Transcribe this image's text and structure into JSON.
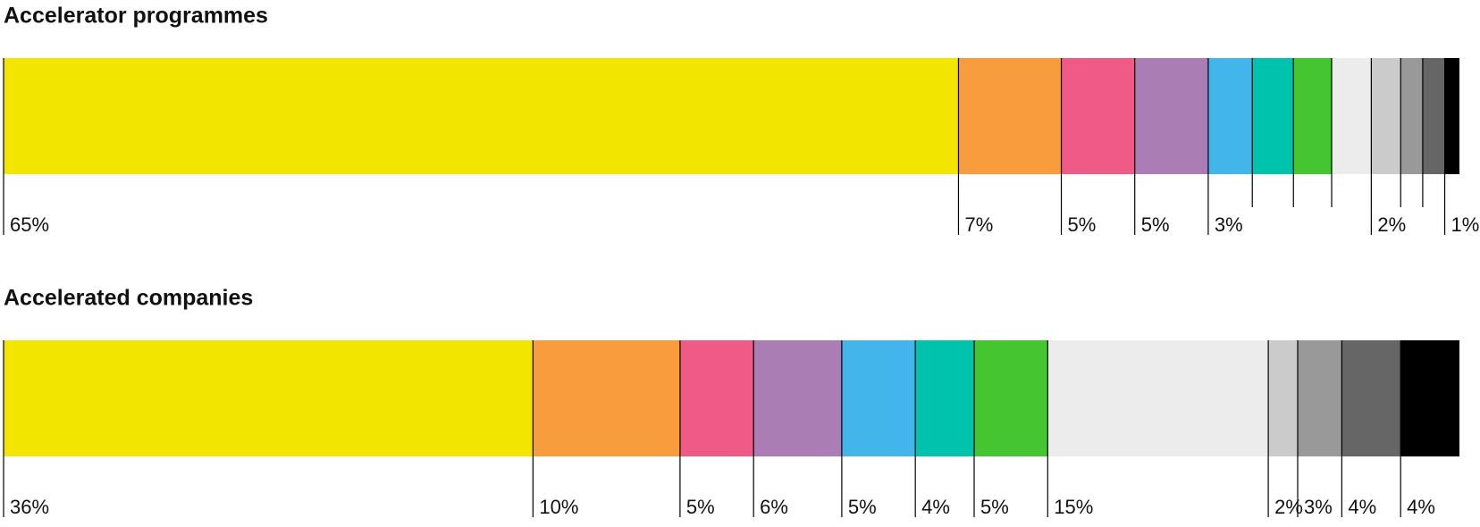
{
  "chart_data": [
    {
      "type": "stacked-bar",
      "title": "Accelerator programmes",
      "values": [
        65,
        7,
        5,
        5,
        3,
        2.8,
        2.6,
        2.7,
        2,
        1.5,
        1.5,
        1
      ],
      "value_labels": [
        "65%",
        "7%",
        "5%",
        "5%",
        "3%",
        null,
        null,
        null,
        "2%",
        null,
        null,
        "1%"
      ],
      "colors": [
        "#f2e500",
        "#f89c3e",
        "#f05a87",
        "#aa7db5",
        "#42b6ea",
        "#00c3ae",
        "#45c631",
        "#ececec",
        "#cbcbcb",
        "#999999",
        "#666666",
        "#000000"
      ]
    },
    {
      "type": "stacked-bar",
      "title": "Accelerated companies",
      "values": [
        36,
        10,
        5,
        6,
        5,
        4,
        5,
        15,
        2,
        3,
        4,
        4
      ],
      "value_labels": [
        "36%",
        "10%",
        "5%",
        "6%",
        "5%",
        "4%",
        "5%",
        "15%",
        "2%",
        "3%",
        "4%",
        "4%"
      ],
      "colors": [
        "#f2e500",
        "#f89c3e",
        "#f05a87",
        "#aa7db5",
        "#42b6ea",
        "#00c3ae",
        "#45c631",
        "#ececec",
        "#cbcbcb",
        "#999999",
        "#666666",
        "#000000"
      ]
    }
  ]
}
